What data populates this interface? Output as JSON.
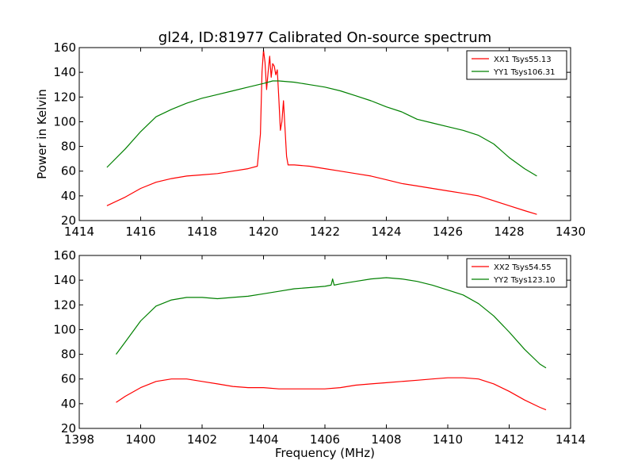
{
  "figure": {
    "title": "gl24, ID:81977 Calibrated On-source spectrum"
  },
  "chart_data": [
    {
      "type": "line",
      "title": "gl24, ID:81977 Calibrated On-source spectrum",
      "xlabel": "",
      "ylabel": "Power in Kelvin",
      "xlim": [
        1414,
        1430
      ],
      "ylim": [
        20,
        160
      ],
      "xticks": [
        "1414",
        "1416",
        "1418",
        "1420",
        "1422",
        "1424",
        "1426",
        "1428",
        "1430"
      ],
      "yticks": [
        "20",
        "40",
        "60",
        "80",
        "100",
        "120",
        "140",
        "160"
      ],
      "grid": false,
      "legend_position": "top-right",
      "series": [
        {
          "name": "XX1 Tsys55.13",
          "color": "#ff0000",
          "x": [
            1414.9,
            1415.5,
            1416.0,
            1416.5,
            1417.0,
            1417.5,
            1418.0,
            1418.5,
            1419.0,
            1419.5,
            1419.8,
            1419.9,
            1419.95,
            1420.0,
            1420.05,
            1420.1,
            1420.15,
            1420.2,
            1420.25,
            1420.3,
            1420.35,
            1420.4,
            1420.45,
            1420.5,
            1420.55,
            1420.6,
            1420.65,
            1420.7,
            1420.75,
            1420.8,
            1421.0,
            1421.5,
            1422.0,
            1422.5,
            1423.0,
            1423.5,
            1424.0,
            1424.5,
            1425.0,
            1425.5,
            1426.0,
            1426.5,
            1427.0,
            1427.5,
            1428.0,
            1428.5,
            1428.9
          ],
          "y": [
            32,
            39,
            46,
            51,
            54,
            56,
            57,
            58,
            60,
            62,
            64,
            90,
            140,
            158,
            148,
            126,
            140,
            153,
            136,
            147,
            145,
            138,
            142,
            118,
            93,
            100,
            117,
            95,
            72,
            65,
            65,
            64,
            62,
            60,
            58,
            56,
            53,
            50,
            48,
            46,
            44,
            42,
            40,
            36,
            32,
            28,
            25
          ]
        },
        {
          "name": "YY1 Tsys106.31",
          "color": "#008000",
          "x": [
            1414.9,
            1415.5,
            1416.0,
            1416.5,
            1417.0,
            1417.5,
            1418.0,
            1418.5,
            1419.0,
            1419.5,
            1420.0,
            1420.3,
            1420.5,
            1421.0,
            1421.5,
            1422.0,
            1422.5,
            1423.0,
            1423.5,
            1424.0,
            1424.5,
            1425.0,
            1425.5,
            1426.0,
            1426.5,
            1427.0,
            1427.5,
            1428.0,
            1428.5,
            1428.9
          ],
          "y": [
            63,
            78,
            92,
            104,
            110,
            115,
            119,
            122,
            125,
            128,
            131,
            133,
            133,
            132,
            130,
            128,
            125,
            121,
            117,
            112,
            108,
            102,
            99,
            96,
            93,
            89,
            82,
            71,
            62,
            56
          ]
        }
      ]
    },
    {
      "type": "line",
      "title": "",
      "xlabel": "Frequency (MHz)",
      "ylabel": "",
      "xlim": [
        1398,
        1414
      ],
      "ylim": [
        20,
        160
      ],
      "xticks": [
        "1398",
        "1400",
        "1402",
        "1404",
        "1406",
        "1408",
        "1410",
        "1412",
        "1414"
      ],
      "yticks": [
        "20",
        "40",
        "60",
        "80",
        "100",
        "120",
        "140",
        "160"
      ],
      "grid": false,
      "legend_position": "top-right",
      "series": [
        {
          "name": "XX2 Tsys54.55",
          "color": "#ff0000",
          "x": [
            1399.2,
            1399.5,
            1400.0,
            1400.5,
            1401.0,
            1401.5,
            1402.0,
            1402.5,
            1403.0,
            1403.5,
            1404.0,
            1404.5,
            1405.0,
            1405.5,
            1406.0,
            1406.5,
            1407.0,
            1407.5,
            1408.0,
            1408.5,
            1409.0,
            1409.5,
            1410.0,
            1410.5,
            1411.0,
            1411.5,
            1412.0,
            1412.5,
            1413.0,
            1413.2
          ],
          "y": [
            41,
            46,
            53,
            58,
            60,
            60,
            58,
            56,
            54,
            53,
            53,
            52,
            52,
            52,
            52,
            53,
            55,
            56,
            57,
            58,
            59,
            60,
            61,
            61,
            60,
            56,
            50,
            43,
            37,
            35
          ]
        },
        {
          "name": "YY2 Tsys123.10",
          "color": "#008000",
          "x": [
            1399.2,
            1399.5,
            1400.0,
            1400.5,
            1401.0,
            1401.5,
            1402.0,
            1402.5,
            1403.0,
            1403.5,
            1404.0,
            1404.5,
            1405.0,
            1405.5,
            1406.0,
            1406.2,
            1406.25,
            1406.3,
            1406.5,
            1407.0,
            1407.5,
            1408.0,
            1408.5,
            1409.0,
            1409.5,
            1410.0,
            1410.5,
            1411.0,
            1411.5,
            1412.0,
            1412.5,
            1413.0,
            1413.2
          ],
          "y": [
            80,
            90,
            107,
            119,
            124,
            126,
            126,
            125,
            126,
            127,
            129,
            131,
            133,
            134,
            135,
            136,
            141,
            136,
            137,
            139,
            141,
            142,
            141,
            139,
            136,
            132,
            128,
            121,
            111,
            98,
            84,
            72,
            69
          ]
        }
      ]
    }
  ]
}
